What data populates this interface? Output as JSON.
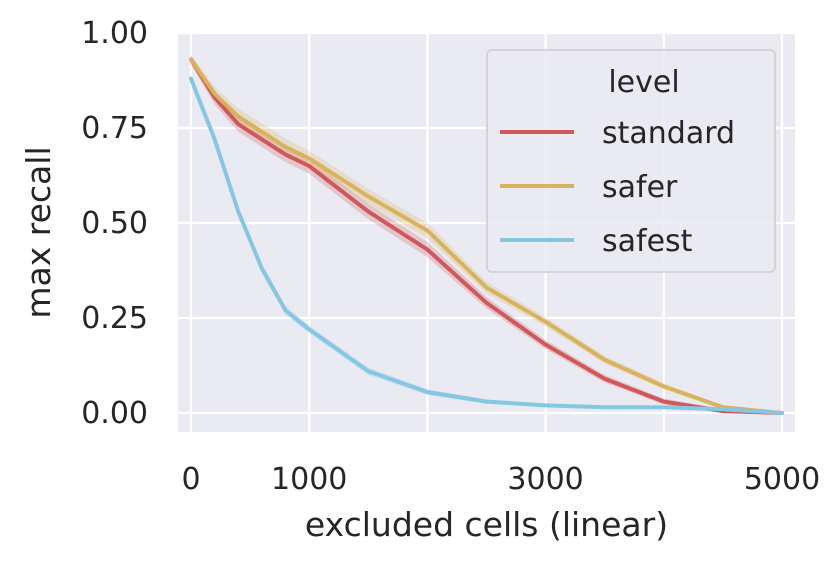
{
  "chart_data": {
    "type": "line",
    "title": "",
    "xlabel": "excluded cells (linear)",
    "ylabel": "max recall",
    "xlim": [
      -110,
      5110
    ],
    "ylim": [
      -0.05,
      1.0
    ],
    "xticks": [
      0,
      1000,
      3000,
      5000
    ],
    "xtick_labels": [
      "0",
      "1000",
      "3000",
      "5000"
    ],
    "xgrid": [
      0,
      1000,
      2000,
      3000,
      4000,
      5000
    ],
    "yticks": [
      0.0,
      0.25,
      0.5,
      0.75,
      1.0
    ],
    "ytick_labels": [
      "0.00",
      "0.25",
      "0.50",
      "0.75",
      "1.00"
    ],
    "grid": true,
    "legend": {
      "title": "level",
      "placement": "top-right"
    },
    "series": [
      {
        "name": "standard",
        "color": "#d1585a",
        "x": [
          0,
          200,
          400,
          600,
          800,
          1000,
          1500,
          2000,
          2500,
          3000,
          3500,
          4000,
          4500,
          5000
        ],
        "y": [
          0.93,
          0.83,
          0.76,
          0.72,
          0.68,
          0.65,
          0.53,
          0.43,
          0.29,
          0.18,
          0.09,
          0.03,
          0.005,
          0.0
        ],
        "band": [
          0.012,
          0.018,
          0.02,
          0.02,
          0.02,
          0.02,
          0.02,
          0.02,
          0.015,
          0.012,
          0.01,
          0.008,
          0.005,
          0.003
        ]
      },
      {
        "name": "safer",
        "color": "#d9b35c",
        "x": [
          0,
          200,
          400,
          600,
          800,
          1000,
          1500,
          2000,
          2500,
          3000,
          3500,
          4000,
          4500,
          5000
        ],
        "y": [
          0.93,
          0.84,
          0.78,
          0.74,
          0.7,
          0.67,
          0.57,
          0.48,
          0.33,
          0.24,
          0.14,
          0.07,
          0.015,
          0.0
        ],
        "band": [
          0.012,
          0.018,
          0.022,
          0.022,
          0.022,
          0.02,
          0.02,
          0.02,
          0.015,
          0.012,
          0.01,
          0.008,
          0.005,
          0.003
        ]
      },
      {
        "name": "safest",
        "color": "#85c6e3",
        "x": [
          0,
          200,
          400,
          600,
          800,
          1000,
          1500,
          2000,
          2500,
          3000,
          3500,
          4000,
          4500,
          5000
        ],
        "y": [
          0.88,
          0.72,
          0.53,
          0.38,
          0.27,
          0.22,
          0.11,
          0.055,
          0.03,
          0.02,
          0.015,
          0.015,
          0.01,
          0.0
        ],
        "band": [
          0.008,
          0.012,
          0.012,
          0.012,
          0.012,
          0.01,
          0.01,
          0.008,
          0.006,
          0.005,
          0.004,
          0.004,
          0.003,
          0.002
        ]
      }
    ]
  }
}
